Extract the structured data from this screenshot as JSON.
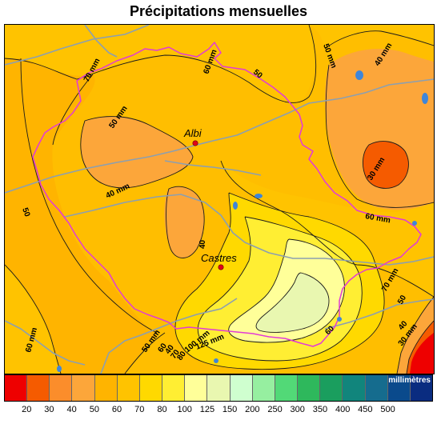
{
  "title": "Précipitations mensuelles",
  "cities": [
    {
      "name": "Albi",
      "dot_color": "#e0001a"
    },
    {
      "name": "Castres",
      "dot_color": "#e0001a"
    }
  ],
  "contour_labels": [
    "70 mm",
    "60 mm",
    "50 mm",
    "50",
    "40 mm",
    "50 mm",
    "40 mm",
    "50",
    "30 mm",
    "40",
    "60 mm",
    "60 mm",
    "50 mm",
    "60",
    "40",
    "70",
    "80",
    "100 mm",
    "125 mm",
    "70 mm",
    "60",
    "50",
    "40",
    "30 mm"
  ],
  "legend": {
    "unit": "millimètres",
    "colors": [
      "#ee0000",
      "#f55b00",
      "#fb8d2b",
      "#fca63a",
      "#ffb400",
      "#ffc300",
      "#ffd900",
      "#ffee33",
      "#ffff99",
      "#e9f7b0",
      "#cfffcf",
      "#96efa0",
      "#52d977",
      "#2eb85c",
      "#1a9e5e",
      "#11857c",
      "#156c8e",
      "#0a4a8c",
      "#0a2c80"
    ],
    "ticks": [
      "20",
      "30",
      "40",
      "50",
      "60",
      "70",
      "80",
      "100",
      "125",
      "150",
      "200",
      "250",
      "300",
      "350",
      "400",
      "450",
      "500"
    ]
  }
}
